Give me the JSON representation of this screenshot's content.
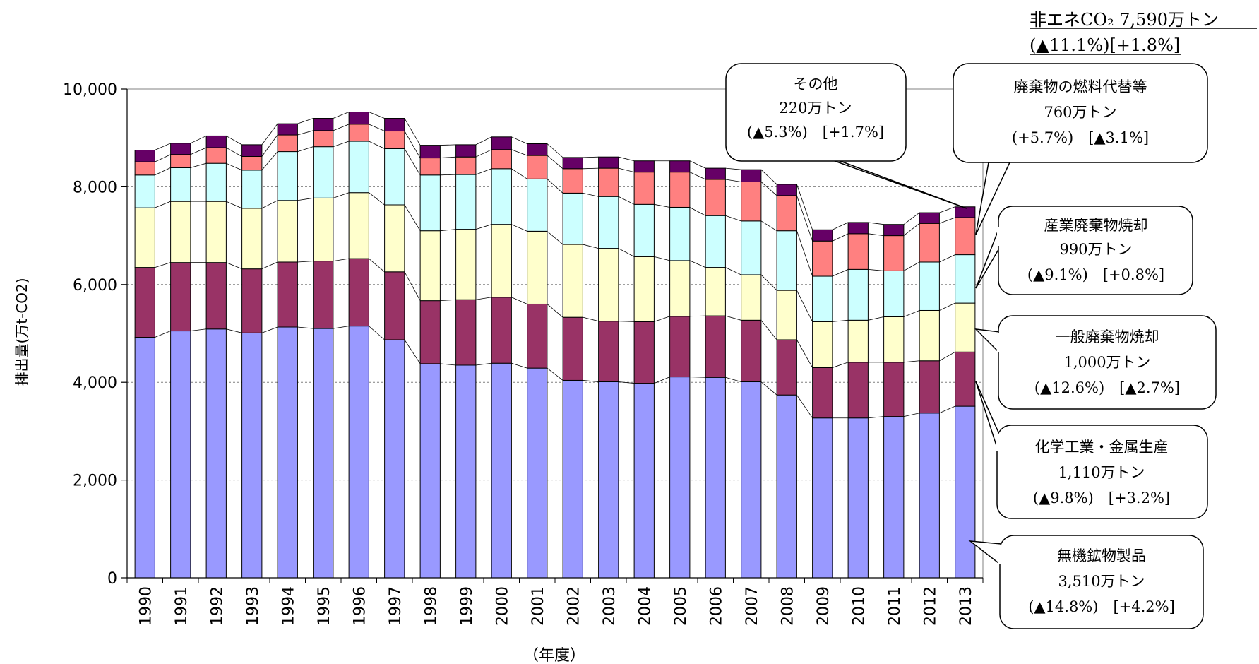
{
  "chart_data": {
    "type": "bar",
    "stacked": true,
    "title": "",
    "xlabel": "（年度）",
    "ylabel": "排出量(万t-CO2)",
    "ylim": [
      0,
      10000
    ],
    "yticks": [
      0,
      2000,
      4000,
      6000,
      8000,
      10000
    ],
    "ytick_labels": [
      "0",
      "2,000",
      "4,000",
      "6,000",
      "8,000",
      "10,000"
    ],
    "grid": true,
    "categories": [
      "1990",
      "1991",
      "1992",
      "1993",
      "1994",
      "1995",
      "1996",
      "1997",
      "1998",
      "1999",
      "2000",
      "2001",
      "2002",
      "2003",
      "2004",
      "2005",
      "2006",
      "2007",
      "2008",
      "2009",
      "2010",
      "2011",
      "2012",
      "2013"
    ],
    "series": [
      {
        "name": "無機鉱物製品",
        "color": "#9999ff",
        "values": [
          4920,
          5050,
          5090,
          5010,
          5130,
          5100,
          5150,
          4870,
          4380,
          4350,
          4390,
          4290,
          4040,
          4010,
          3980,
          4110,
          4100,
          4010,
          3740,
          3270,
          3270,
          3300,
          3370,
          3510
        ]
      },
      {
        "name": "化学工業・金属生産",
        "color": "#993366",
        "values": [
          1430,
          1400,
          1360,
          1310,
          1330,
          1380,
          1380,
          1390,
          1290,
          1340,
          1350,
          1310,
          1290,
          1240,
          1260,
          1240,
          1260,
          1260,
          1130,
          1030,
          1140,
          1110,
          1070,
          1110
        ]
      },
      {
        "name": "一般廃棄物焼却",
        "color": "#ffffcc",
        "values": [
          1220,
          1250,
          1250,
          1240,
          1260,
          1290,
          1350,
          1370,
          1430,
          1440,
          1490,
          1490,
          1490,
          1490,
          1330,
          1140,
          990,
          930,
          1010,
          940,
          860,
          930,
          1030,
          1000
        ]
      },
      {
        "name": "産業廃棄物焼却",
        "color": "#ccffff",
        "values": [
          670,
          690,
          780,
          780,
          1000,
          1050,
          1050,
          1150,
          1140,
          1120,
          1140,
          1070,
          1050,
          1060,
          1070,
          1090,
          1060,
          1100,
          1220,
          930,
          1040,
          940,
          990,
          990
        ]
      },
      {
        "name": "廃棄物の燃料代替等",
        "color": "#ff8080",
        "values": [
          270,
          270,
          320,
          280,
          340,
          330,
          350,
          360,
          350,
          360,
          390,
          480,
          500,
          580,
          660,
          720,
          740,
          800,
          720,
          720,
          730,
          720,
          790,
          760
        ]
      },
      {
        "name": "その他",
        "color": "#660066",
        "values": [
          240,
          230,
          240,
          240,
          230,
          250,
          250,
          260,
          260,
          250,
          260,
          240,
          230,
          230,
          230,
          230,
          230,
          250,
          230,
          230,
          230,
          230,
          220,
          220
        ]
      }
    ]
  },
  "header": {
    "line1": "非エネCO₂ 7,590万トン",
    "line2": "(▲11.1%)[+1.8%]"
  },
  "callouts": [
    {
      "line1": "その他",
      "line2": "220万トン",
      "line3": "(▲5.3%)　[+1.7%]"
    },
    {
      "line1": "廃棄物の燃料代替等",
      "line2": "760万トン",
      "line3": "(+5.7%)　[▲3.1%]"
    },
    {
      "line1": "産業廃棄物焼却",
      "line2": "990万トン",
      "line3": "(▲9.1%)　[+0.8%]"
    },
    {
      "line1": "一般廃棄物焼却",
      "line2": "1,000万トン",
      "line3": "(▲12.6%)　[▲2.7%]"
    },
    {
      "line1": "化学工業・金属生産",
      "line2": "1,110万トン",
      "line3": "(▲9.8%)　[+3.2%]"
    },
    {
      "line1": "無機鉱物製品",
      "line2": "3,510万トン",
      "line3": "(▲14.8%)　[+4.2%]"
    }
  ]
}
